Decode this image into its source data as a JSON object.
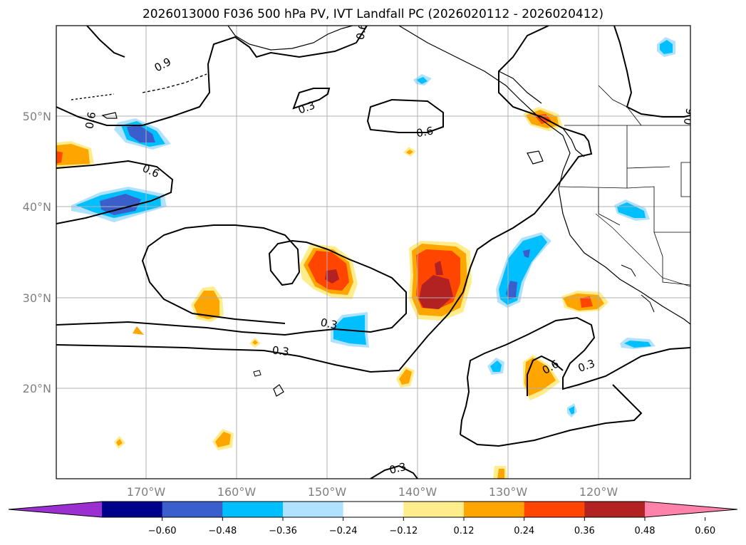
{
  "title": "2026013000 F036 500 hPa PV, IVT Landfall PC (2026020112 - 2026020412)",
  "map": {
    "lat_labels": [
      "50°N",
      "40°N",
      "30°N",
      "20°N"
    ],
    "lon_labels": [
      "170°W",
      "160°W",
      "150°W",
      "140°W",
      "130°W",
      "120°W"
    ],
    "contour_labels": [
      "0.9",
      "0.6",
      "0.6",
      "0.3",
      "0.6",
      "0.6",
      "0.6",
      "0.3",
      "0.3",
      "0.6",
      "0.3",
      "0.3"
    ]
  },
  "colorbar": {
    "ticks": [
      "−0.60",
      "−0.48",
      "−0.36",
      "−0.24",
      "−0.12",
      "0.12",
      "0.24",
      "0.36",
      "0.48",
      "0.60"
    ],
    "colors": [
      "#9b30d0",
      "#00008b",
      "#3a5fcd",
      "#00bfff",
      "#b0e2ff",
      "#ffffff",
      "#ffec8b",
      "#ffa500",
      "#ff4500",
      "#b22222",
      "#ff82ab"
    ]
  }
}
